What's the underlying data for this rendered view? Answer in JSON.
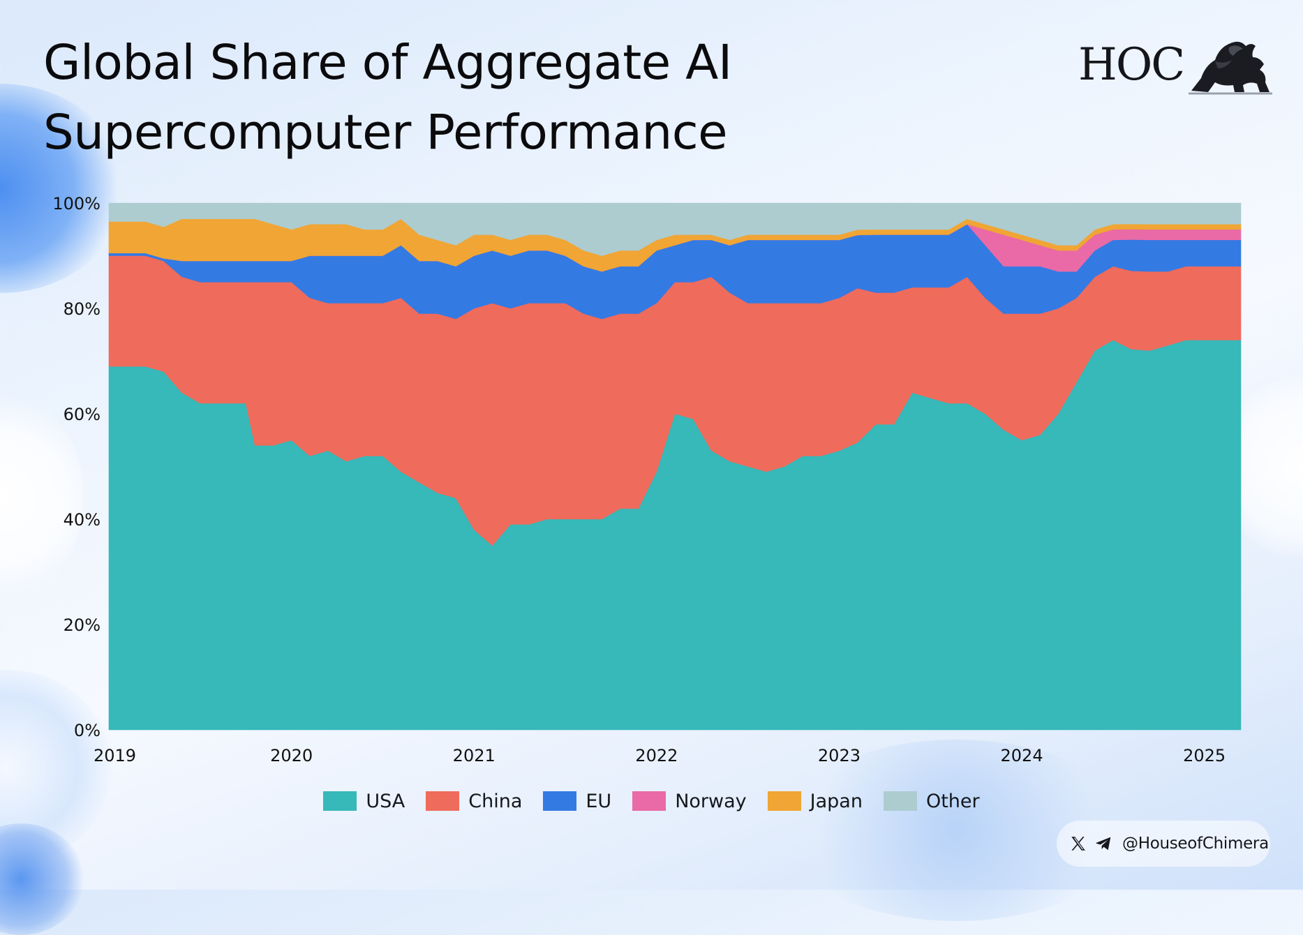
{
  "header": {
    "title": "Global Share of Aggregate AI Supercomputer Performance",
    "logo_text": "HOC",
    "logo_icon": "lion-icon"
  },
  "social": {
    "icons": [
      "x-icon",
      "telegram-icon"
    ],
    "handle": "@HouseofChimera"
  },
  "chart_data": {
    "type": "area",
    "stacked": true,
    "normalized": true,
    "title": "Global Share of Aggregate AI Supercomputer Performance",
    "xlabel": "",
    "ylabel": "",
    "ylim": [
      0,
      100
    ],
    "xlim": [
      2019.0,
      2025.2
    ],
    "grid": false,
    "legend_position": "bottom",
    "y_ticks": [
      "0%",
      "20%",
      "40%",
      "60%",
      "80%",
      "100%"
    ],
    "x_ticks": [
      "2019",
      "2020",
      "2021",
      "2022",
      "2023",
      "2024",
      "2025"
    ],
    "x": [
      2019.0,
      2019.2,
      2019.3,
      2019.4,
      2019.5,
      2019.6,
      2019.75,
      2019.8,
      2019.9,
      2020.0,
      2020.1,
      2020.2,
      2020.3,
      2020.4,
      2020.5,
      2020.6,
      2020.7,
      2020.8,
      2020.9,
      2021.0,
      2021.1,
      2021.2,
      2021.3,
      2021.4,
      2021.5,
      2021.6,
      2021.7,
      2021.8,
      2021.9,
      2022.0,
      2022.1,
      2022.2,
      2022.3,
      2022.4,
      2022.5,
      2022.6,
      2022.7,
      2022.8,
      2022.9,
      2023.0,
      2023.1,
      2023.2,
      2023.3,
      2023.4,
      2023.5,
      2023.6,
      2023.7,
      2023.8,
      2023.9,
      2024.0,
      2024.1,
      2024.2,
      2024.3,
      2024.4,
      2024.5,
      2024.6,
      2024.7,
      2024.8,
      2024.9,
      2025.0,
      2025.1,
      2025.2
    ],
    "series": [
      {
        "name": "USA",
        "color": "#37b8b9",
        "values": [
          69,
          69,
          68,
          64,
          62,
          62,
          62,
          54,
          54,
          55,
          52,
          53,
          51,
          52,
          52,
          49,
          47,
          45,
          44,
          38,
          35,
          39,
          39,
          40,
          40,
          40,
          40,
          42,
          42,
          49,
          60,
          59,
          53,
          51,
          50,
          49,
          50,
          52,
          52,
          53,
          54,
          58,
          58,
          64,
          63,
          62,
          62,
          60,
          57,
          55,
          56,
          60,
          66,
          72,
          74,
          73,
          72,
          73,
          74,
          74,
          74,
          74
        ]
      },
      {
        "name": "China",
        "color": "#ef6b5b",
        "values": [
          21,
          21,
          21,
          22,
          23,
          23,
          23,
          31,
          31,
          30,
          30,
          28,
          30,
          29,
          29,
          33,
          32,
          34,
          34,
          42,
          46,
          41,
          42,
          41,
          41,
          39,
          38,
          37,
          37,
          32,
          25,
          26,
          33,
          32,
          31,
          32,
          31,
          29,
          29,
          29,
          29,
          25,
          25,
          20,
          21,
          22,
          24,
          22,
          22,
          24,
          23,
          20,
          16,
          14,
          14,
          15,
          15,
          14,
          14,
          14,
          14,
          14
        ]
      },
      {
        "name": "EU",
        "color": "#347ae3",
        "values": [
          0.5,
          0.5,
          0.5,
          3,
          4,
          4,
          4,
          4,
          4,
          4,
          8,
          9,
          9,
          9,
          9,
          10,
          10,
          10,
          10,
          10,
          10,
          10,
          10,
          10,
          9,
          9,
          9,
          9,
          9,
          10,
          7,
          8,
          7,
          9,
          12,
          12,
          12,
          12,
          12,
          11,
          10,
          11,
          11,
          10,
          10,
          10,
          10,
          10,
          9,
          9,
          9,
          7,
          5,
          5,
          5,
          6,
          6,
          6,
          5,
          5,
          5,
          5
        ]
      },
      {
        "name": "Norway",
        "color": "#e96aa6",
        "values": [
          0,
          0,
          0,
          0,
          0,
          0,
          0,
          0,
          0,
          0,
          0,
          0,
          0,
          0,
          0,
          0,
          0,
          0,
          0,
          0,
          0,
          0,
          0,
          0,
          0,
          0,
          0,
          0,
          0,
          0,
          0,
          0,
          0,
          0,
          0,
          0,
          0,
          0,
          0,
          0,
          0,
          0,
          0,
          0,
          0,
          0,
          0,
          3,
          6,
          5,
          4,
          4,
          4,
          3,
          2,
          2,
          2,
          2,
          2,
          2,
          2,
          2
        ]
      },
      {
        "name": "Japan",
        "color": "#f0a535",
        "values": [
          6,
          6,
          6,
          8,
          8,
          8,
          8,
          8,
          7,
          6,
          6,
          6,
          6,
          5,
          5,
          5,
          5,
          4,
          4,
          4,
          3,
          3,
          3,
          3,
          3,
          3,
          3,
          3,
          3,
          2,
          2,
          1,
          1,
          1,
          1,
          1,
          1,
          1,
          1,
          1,
          1,
          1,
          1,
          1,
          1,
          1,
          1,
          1,
          1,
          1,
          1,
          1,
          1,
          1,
          1,
          1,
          1,
          1,
          1,
          1,
          1,
          1
        ]
      },
      {
        "name": "Other",
        "color": "#adccd0",
        "values": [
          3.5,
          3.5,
          4.5,
          3,
          3,
          3,
          3,
          3,
          4,
          5,
          4,
          4,
          4,
          5,
          5,
          3,
          6,
          7,
          8,
          6,
          6,
          7,
          6,
          6,
          7,
          9,
          10,
          9,
          9,
          7,
          6,
          6,
          6,
          7,
          6,
          6,
          6,
          6,
          6,
          6,
          5,
          5,
          5,
          5,
          5,
          5,
          3,
          4,
          5,
          6,
          7,
          8,
          8,
          5,
          4,
          4,
          4,
          4,
          4,
          4,
          4,
          4
        ]
      }
    ]
  }
}
